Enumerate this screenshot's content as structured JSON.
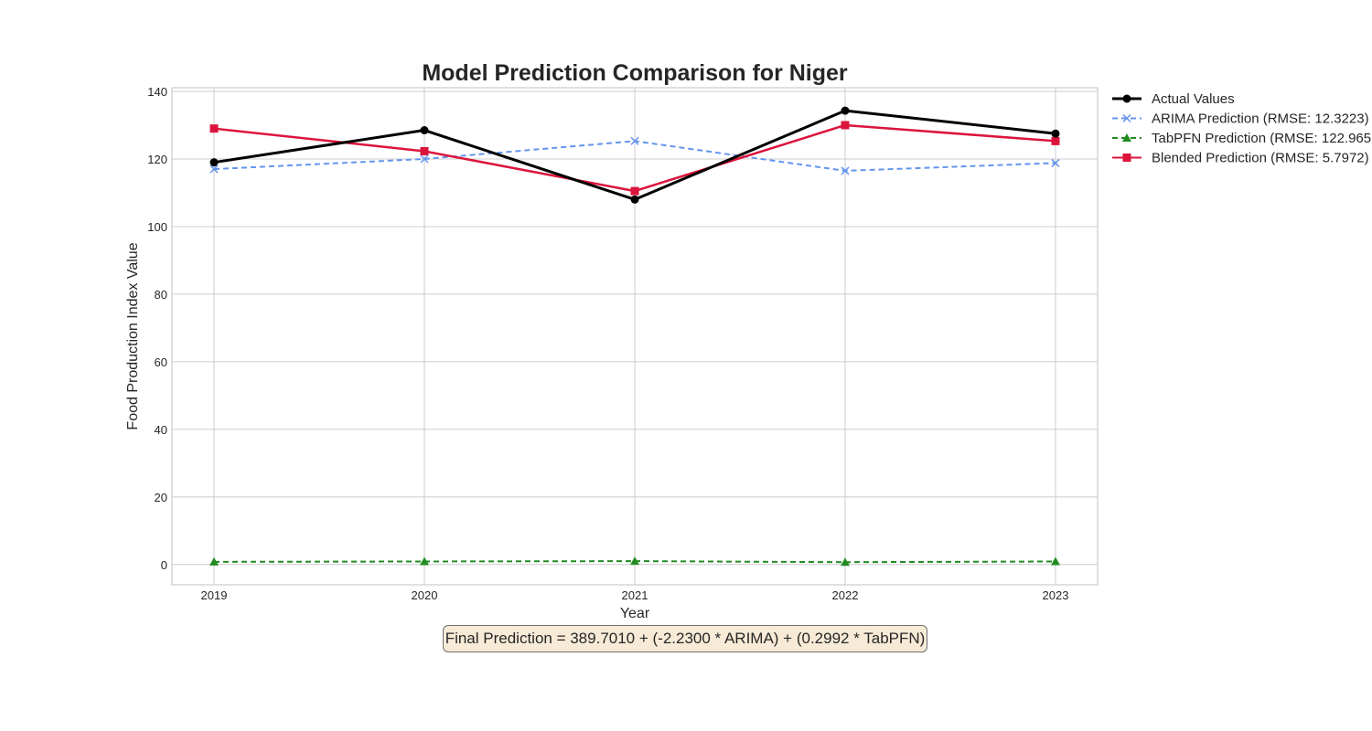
{
  "chart_data": {
    "type": "line",
    "title": "Model Prediction Comparison for Niger",
    "xlabel": "Year",
    "ylabel": "Food Production Index Value",
    "x": [
      2019,
      2020,
      2021,
      2022,
      2023
    ],
    "x_tick_labels": [
      "2019",
      "2020",
      "2021",
      "2022",
      "2023"
    ],
    "ylim": [
      -6,
      140
    ],
    "y_ticks": [
      0,
      20,
      40,
      60,
      80,
      100,
      120,
      140
    ],
    "grid": true,
    "legend_position": "outside-right-top",
    "series": [
      {
        "name": "Actual Values",
        "values": [
          119,
          128.5,
          108,
          134.3,
          127.5
        ],
        "color": "#000000",
        "style": "solid",
        "marker": "circle"
      },
      {
        "name": "ARIMA Prediction (RMSE: 12.3223)",
        "values": [
          117,
          120,
          125.3,
          116.5,
          118.8
        ],
        "color": "#6495ed",
        "style": "dashed",
        "marker": "x"
      },
      {
        "name": "TabPFN Prediction (RMSE: 122.965",
        "values": [
          0.8,
          0.9,
          1.0,
          0.7,
          0.9
        ],
        "color": "#228b22",
        "style": "dashed",
        "marker": "triangle"
      },
      {
        "name": "Blended Prediction (RMSE: 5.7972)",
        "values": [
          129,
          122.3,
          110.5,
          130,
          125.3
        ],
        "color": "#dc143c",
        "style": "solid",
        "marker": "square"
      }
    ],
    "annotation": "Final Prediction = 389.7010 + (-2.2300 * ARIMA) + (0.2992 * TabPFN)"
  }
}
